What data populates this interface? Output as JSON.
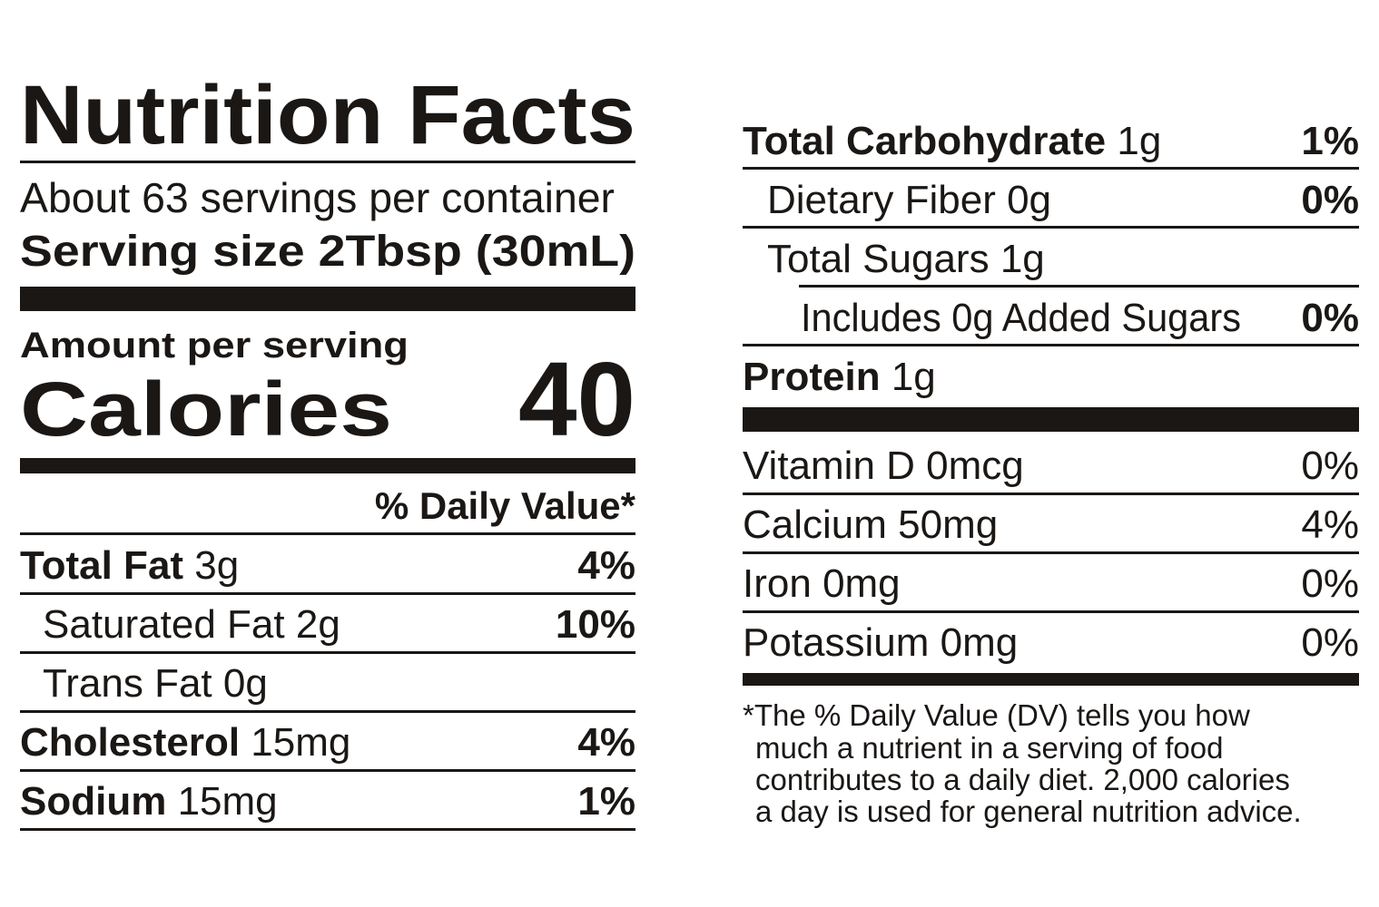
{
  "header": {
    "title": "Nutrition Facts",
    "servings": "About 63 servings per container",
    "serving_size_label": "Serving size",
    "serving_size": "2Tbsp (30mL)"
  },
  "calories": {
    "amount_label": "Amount per serving",
    "label": "Calories",
    "value": "40"
  },
  "daily_value_header": "% Daily Value*",
  "nutrients": [
    {
      "name": "Total Fat",
      "amount": "3g",
      "dv": "4%"
    },
    {
      "name": "Saturated Fat",
      "amount": "2g",
      "dv": "10%"
    },
    {
      "name": "Trans Fat",
      "amount": "0g"
    },
    {
      "name": "Cholesterol",
      "amount": "15mg",
      "dv": "4%"
    },
    {
      "name": "Sodium",
      "amount": "15mg",
      "dv": "1%"
    },
    {
      "name": "Total Carbohydrate",
      "amount": "1g",
      "dv": "1%"
    },
    {
      "name": "Dietary Fiber",
      "amount": "0g",
      "dv": "0%"
    },
    {
      "name": "Total Sugars",
      "amount": "1g"
    },
    {
      "name": "Includes 0g Added Sugars",
      "dv": "0%"
    },
    {
      "name": "Protein",
      "amount": "1g"
    }
  ],
  "vitamins": [
    {
      "name": "Vitamin D",
      "amount": "0mcg",
      "dv": "0%"
    },
    {
      "name": "Calcium",
      "amount": "50mg",
      "dv": "4%"
    },
    {
      "name": "Iron",
      "amount": "0mg",
      "dv": "0%"
    },
    {
      "name": "Potassium",
      "amount": "0mg",
      "dv": "0%"
    }
  ],
  "footnote": [
    "*The % Daily Value (DV) tells you how",
    "much a nutrient in a serving of food",
    "contributes to a daily diet. 2,000 calories",
    "a day is used for general nutrition advice."
  ]
}
